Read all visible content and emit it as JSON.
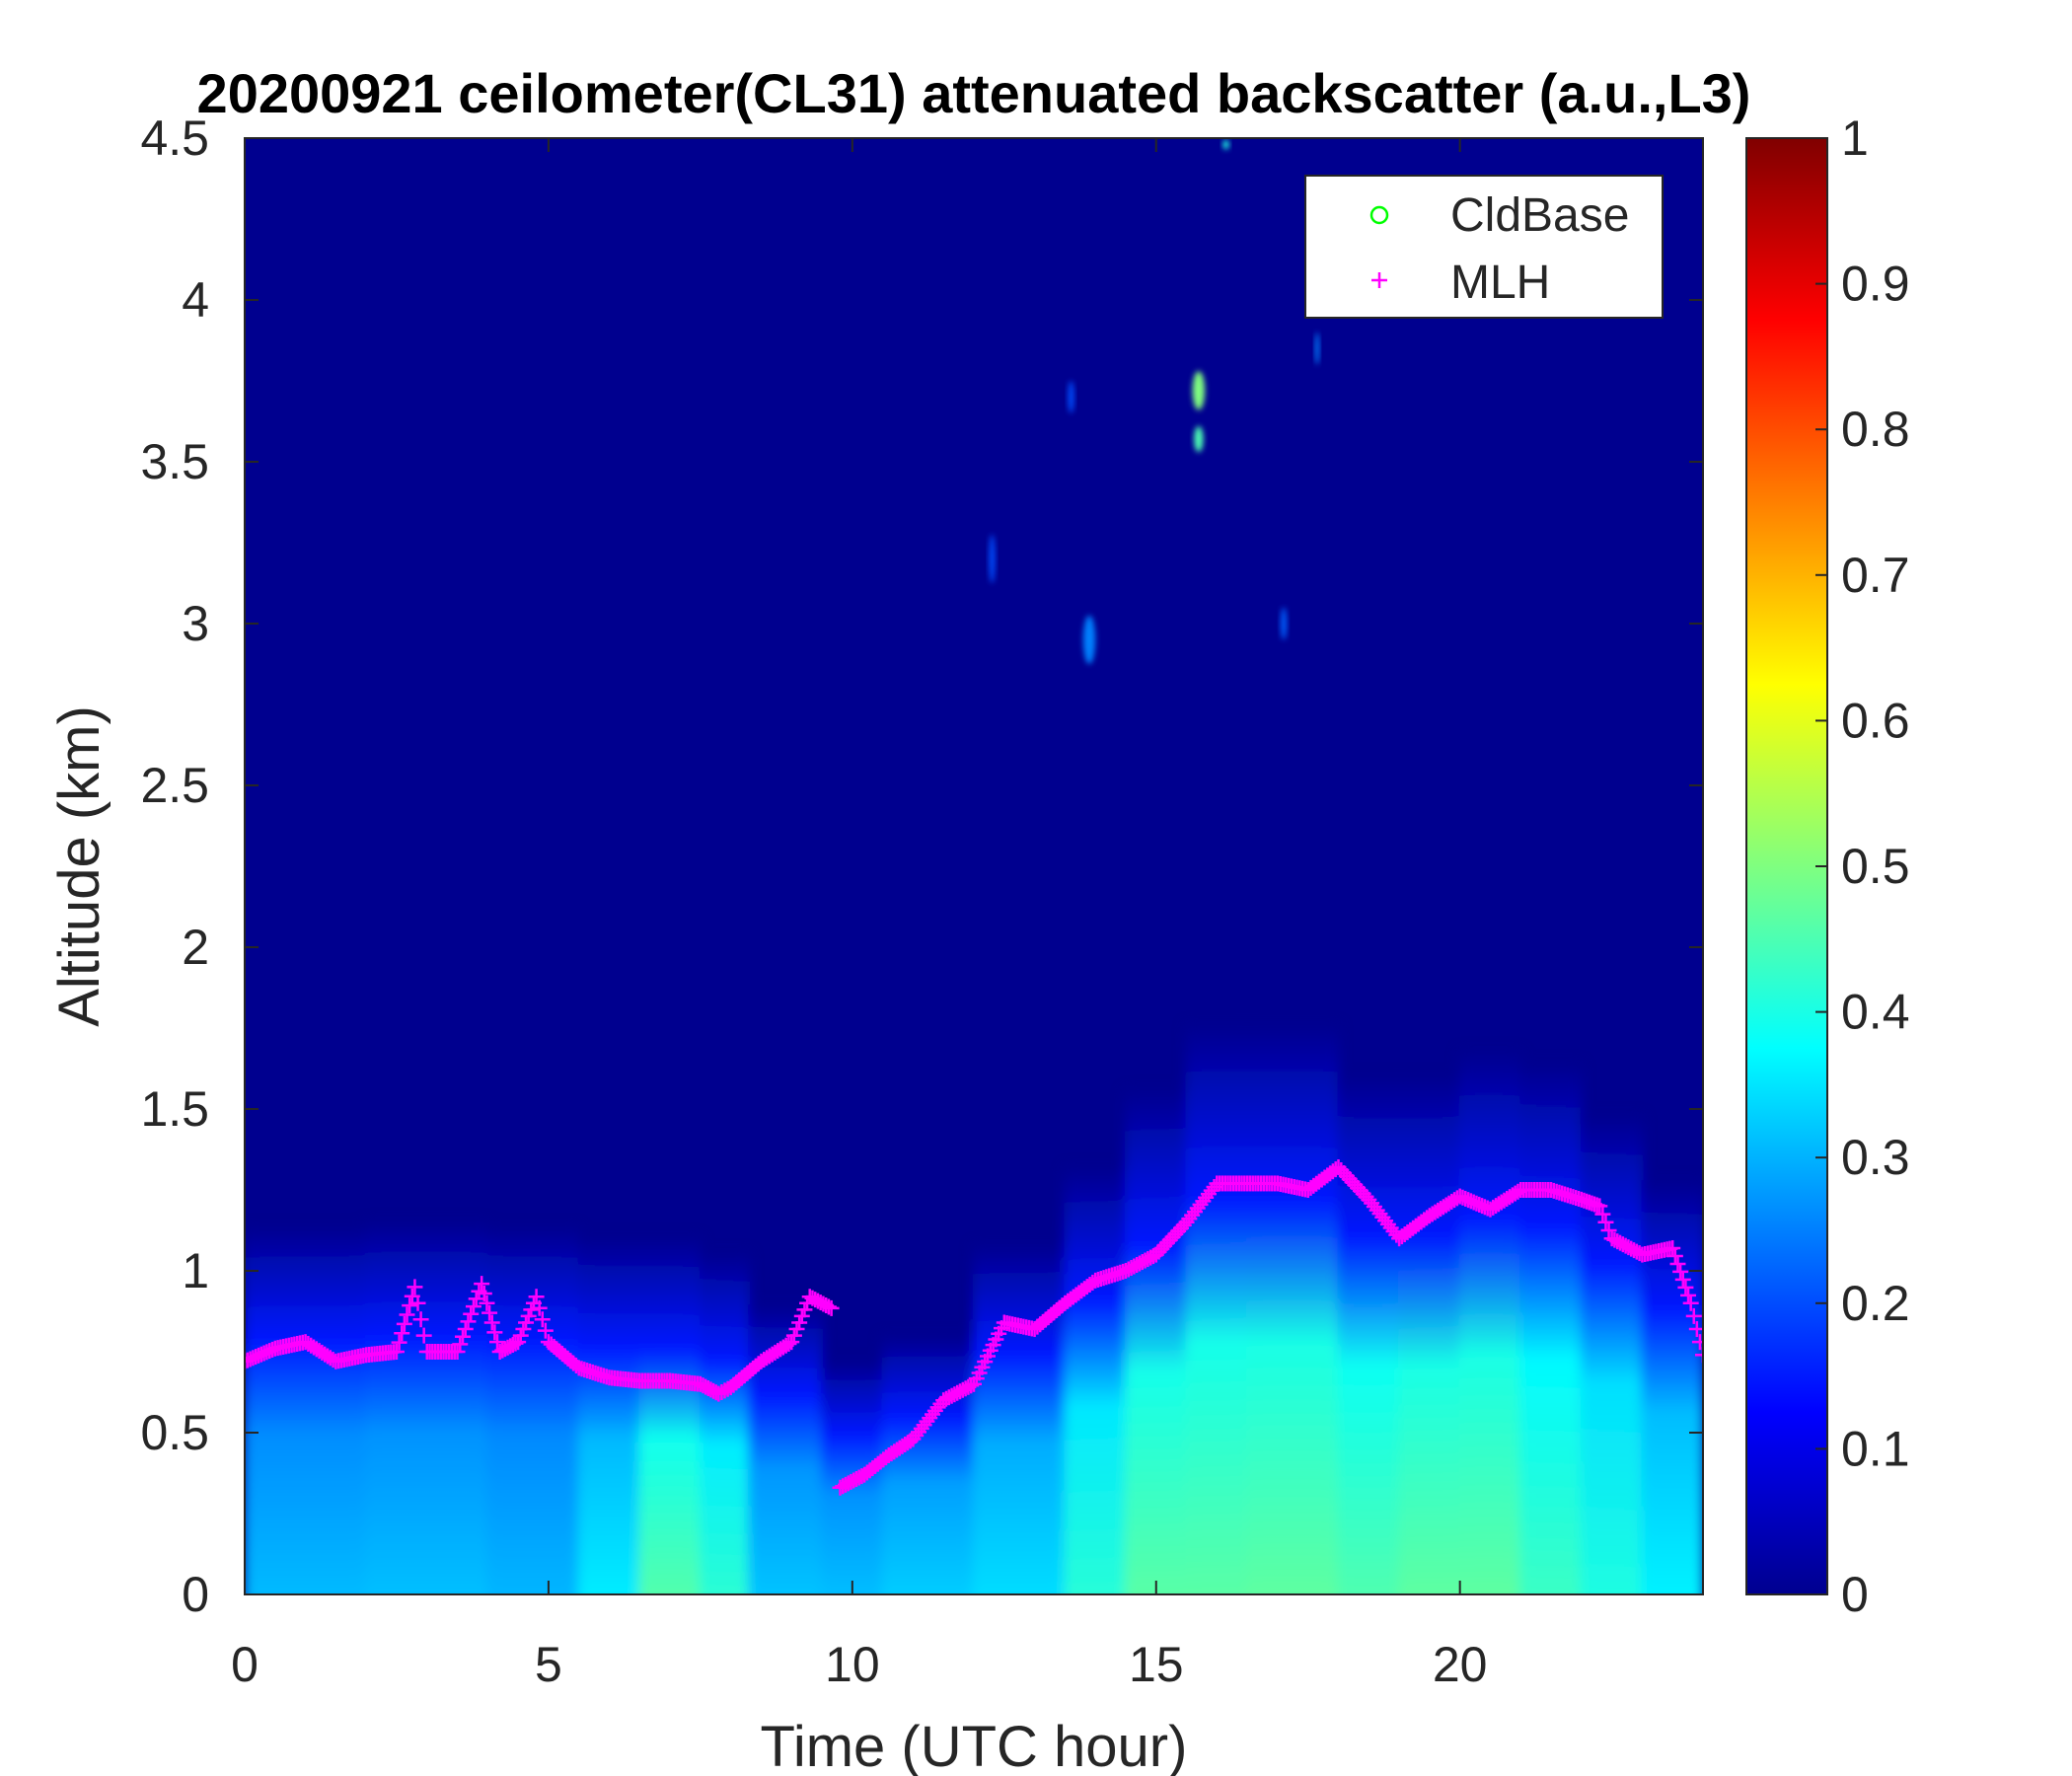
{
  "chart_data": {
    "type": "heatmap",
    "title": "20200921 ceilometer(CL31) attenuated backscatter (a.u.,L3)",
    "xlabel": "Time (UTC hour)",
    "ylabel": "Altitude (km)",
    "xlim": [
      0,
      24
    ],
    "ylim": [
      0,
      4.5
    ],
    "x_ticks": [
      "0",
      "5",
      "10",
      "15",
      "20"
    ],
    "y_ticks": [
      "0",
      "0.5",
      "1",
      "1.5",
      "2",
      "2.5",
      "3",
      "3.5",
      "4",
      "4.5"
    ],
    "colorbar": {
      "colormap": "jet",
      "range": [
        0,
        1
      ],
      "ticks": [
        "0",
        "0.1",
        "0.2",
        "0.3",
        "0.4",
        "0.5",
        "0.6",
        "0.7",
        "0.8",
        "0.9",
        "1"
      ]
    },
    "legend": {
      "position": "top-right",
      "entries": [
        {
          "label": "CldBase",
          "marker": "circle",
          "color": "#00ff00"
        },
        {
          "label": "MLH",
          "marker": "plus",
          "color": "#ff00ff"
        }
      ]
    },
    "series": [
      {
        "name": "MLH",
        "x": [
          0.0,
          0.5,
          1.0,
          1.5,
          2.0,
          2.5,
          2.8,
          3.0,
          3.5,
          3.9,
          4.2,
          4.5,
          4.8,
          5.0,
          5.5,
          6.0,
          6.5,
          7.0,
          7.5,
          7.8,
          8.0,
          8.5,
          9.0,
          9.3,
          9.7,
          9.8,
          10.2,
          10.6,
          11.0,
          11.5,
          12.0,
          12.5,
          13.0,
          13.5,
          14.0,
          14.5,
          15.0,
          15.5,
          16.0,
          16.5,
          17.0,
          17.5,
          18.0,
          18.5,
          19.0,
          19.5,
          20.0,
          20.5,
          21.0,
          21.5,
          22.0,
          22.3,
          22.5,
          23.0,
          23.5,
          23.8,
          24.0
        ],
        "y": [
          0.72,
          0.76,
          0.78,
          0.72,
          0.74,
          0.75,
          0.95,
          0.75,
          0.75,
          0.96,
          0.75,
          0.78,
          0.92,
          0.78,
          0.7,
          0.67,
          0.66,
          0.66,
          0.65,
          0.62,
          0.64,
          0.72,
          0.78,
          0.92,
          0.88,
          0.33,
          0.37,
          0.43,
          0.48,
          0.6,
          0.65,
          0.84,
          0.82,
          0.9,
          0.97,
          1.0,
          1.05,
          1.15,
          1.27,
          1.27,
          1.27,
          1.25,
          1.32,
          1.22,
          1.1,
          1.17,
          1.23,
          1.19,
          1.25,
          1.25,
          1.22,
          1.2,
          1.1,
          1.05,
          1.07,
          0.9,
          0.74
        ]
      }
    ],
    "backscatter_profile": {
      "x": [
        0,
        2,
        4,
        5.5,
        6.5,
        7.5,
        8.3,
        9.5,
        10.5,
        12,
        13.5,
        14.5,
        15.5,
        16.5,
        18,
        19,
        20,
        21,
        22,
        23,
        24
      ],
      "surface_value": [
        0.3,
        0.32,
        0.31,
        0.3,
        0.42,
        0.5,
        0.34,
        0.3,
        0.33,
        0.33,
        0.36,
        0.47,
        0.46,
        0.47,
        0.47,
        0.44,
        0.5,
        0.44,
        0.43,
        0.38,
        0.35
      ],
      "layer_top_km": [
        0.7,
        0.72,
        0.72,
        0.7,
        0.68,
        0.7,
        0.62,
        0.5,
        0.4,
        0.6,
        0.75,
        0.9,
        1.05,
        1.15,
        1.05,
        0.95,
        1.05,
        1.05,
        1.0,
        0.85,
        0.75
      ]
    },
    "cloud_patches": [
      {
        "x": 15.7,
        "y": 3.72,
        "w": 0.2,
        "h": 0.12,
        "value": 0.5
      },
      {
        "x": 15.7,
        "y": 3.57,
        "w": 0.15,
        "h": 0.08,
        "value": 0.45
      },
      {
        "x": 13.9,
        "y": 2.95,
        "w": 0.2,
        "h": 0.15,
        "value": 0.25
      },
      {
        "x": 13.6,
        "y": 3.7,
        "w": 0.1,
        "h": 0.1,
        "value": 0.2
      },
      {
        "x": 12.3,
        "y": 3.2,
        "w": 0.1,
        "h": 0.15,
        "value": 0.2
      },
      {
        "x": 17.1,
        "y": 3.0,
        "w": 0.1,
        "h": 0.1,
        "value": 0.22
      },
      {
        "x": 17.65,
        "y": 3.85,
        "w": 0.07,
        "h": 0.1,
        "value": 0.25
      },
      {
        "x": 16.15,
        "y": 4.48,
        "w": 0.1,
        "h": 0.03,
        "value": 0.4
      }
    ]
  }
}
